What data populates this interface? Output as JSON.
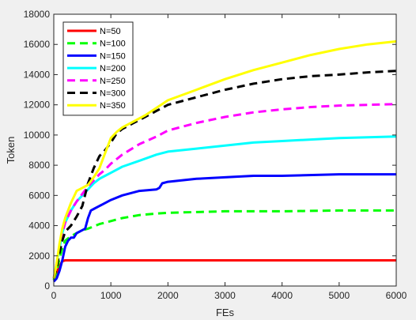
{
  "chart_data": {
    "type": "line",
    "title": "",
    "xlabel": "FEs",
    "ylabel": "Token",
    "xlim": [
      0,
      6000
    ],
    "ylim": [
      0,
      18000
    ],
    "xticks": [
      0,
      1000,
      2000,
      3000,
      4000,
      5000,
      6000
    ],
    "yticks": [
      0,
      2000,
      4000,
      6000,
      8000,
      10000,
      12000,
      14000,
      16000,
      18000
    ],
    "grid": false,
    "legend_position": "top-left",
    "series": [
      {
        "name": "N=50",
        "color": "#ff0000",
        "style": "solid",
        "x": [
          0,
          50,
          100,
          150,
          200,
          300,
          1000,
          2000,
          3000,
          4000,
          5000,
          6000
        ],
        "y": [
          600,
          900,
          1300,
          1650,
          1700,
          1700,
          1700,
          1700,
          1700,
          1700,
          1700,
          1700
        ]
      },
      {
        "name": "N=100",
        "color": "#00ff00",
        "style": "dashed",
        "x": [
          0,
          50,
          100,
          150,
          200,
          300,
          400,
          500,
          600,
          700,
          800,
          1000,
          1200,
          1500,
          1800,
          2000,
          2500,
          3000,
          4000,
          5000,
          6000
        ],
        "y": [
          400,
          1000,
          1800,
          2500,
          3000,
          3300,
          3500,
          3700,
          3800,
          3950,
          4100,
          4300,
          4500,
          4700,
          4800,
          4850,
          4900,
          4950,
          4950,
          5000,
          5000
        ]
      },
      {
        "name": "N=150",
        "color": "#0000ff",
        "style": "solid",
        "x": [
          0,
          50,
          100,
          150,
          200,
          250,
          300,
          350,
          400,
          450,
          500,
          550,
          600,
          650,
          700,
          800,
          1000,
          1200,
          1500,
          1800,
          1850,
          1900,
          2000,
          2500,
          3000,
          3500,
          4000,
          5000,
          6000
        ],
        "y": [
          300,
          500,
          1000,
          1700,
          2600,
          3000,
          3200,
          3200,
          3500,
          3600,
          3700,
          3800,
          4500,
          5000,
          5100,
          5300,
          5700,
          6000,
          6300,
          6400,
          6500,
          6800,
          6900,
          7100,
          7200,
          7300,
          7300,
          7400,
          7400
        ]
      },
      {
        "name": "N=200",
        "color": "#00ffff",
        "style": "solid",
        "x": [
          0,
          50,
          100,
          150,
          200,
          300,
          400,
          500,
          600,
          700,
          800,
          900,
          1000,
          1200,
          1500,
          1800,
          2000,
          2500,
          3000,
          3500,
          4000,
          5000,
          6000
        ],
        "y": [
          500,
          1500,
          2500,
          3500,
          4200,
          5000,
          5600,
          6000,
          6400,
          6800,
          7100,
          7300,
          7500,
          7900,
          8300,
          8700,
          8900,
          9100,
          9300,
          9500,
          9600,
          9800,
          9900
        ]
      },
      {
        "name": "N=250",
        "color": "#ff00ff",
        "style": "dashed",
        "x": [
          0,
          50,
          100,
          150,
          200,
          300,
          400,
          500,
          600,
          700,
          800,
          900,
          1000,
          1200,
          1500,
          1800,
          2000,
          2500,
          3000,
          3500,
          4000,
          4500,
          5000,
          5500,
          6000
        ],
        "y": [
          500,
          1500,
          2500,
          3500,
          4200,
          5000,
          5600,
          6100,
          6600,
          7000,
          7400,
          7700,
          8100,
          8700,
          9400,
          9900,
          10300,
          10800,
          11200,
          11500,
          11700,
          11850,
          11950,
          12000,
          12050
        ]
      },
      {
        "name": "N=300",
        "color": "#000000",
        "style": "dashed",
        "x": [
          0,
          50,
          100,
          150,
          200,
          300,
          400,
          500,
          600,
          700,
          800,
          900,
          1000,
          1100,
          1200,
          1400,
          1600,
          1800,
          2000,
          2500,
          3000,
          3500,
          4000,
          4500,
          5000,
          5500,
          6000
        ],
        "y": [
          500,
          1200,
          2200,
          3000,
          3600,
          4000,
          4600,
          5300,
          6800,
          7800,
          8600,
          9000,
          9500,
          10100,
          10400,
          10800,
          11200,
          11600,
          12000,
          12500,
          13000,
          13400,
          13700,
          13900,
          14000,
          14150,
          14250
        ]
      },
      {
        "name": "N=350",
        "color": "#ffff00",
        "style": "solid",
        "x": [
          0,
          50,
          100,
          150,
          200,
          300,
          400,
          500,
          600,
          700,
          800,
          900,
          1000,
          1100,
          1200,
          1400,
          1600,
          1800,
          2000,
          2500,
          3000,
          3500,
          4000,
          4500,
          5000,
          5500,
          6000
        ],
        "y": [
          500,
          1500,
          2800,
          3800,
          4500,
          5500,
          6300,
          6500,
          6700,
          7200,
          7800,
          8800,
          9800,
          10200,
          10500,
          10900,
          11300,
          11800,
          12300,
          13000,
          13700,
          14300,
          14800,
          15300,
          15700,
          16000,
          16200
        ]
      }
    ]
  }
}
